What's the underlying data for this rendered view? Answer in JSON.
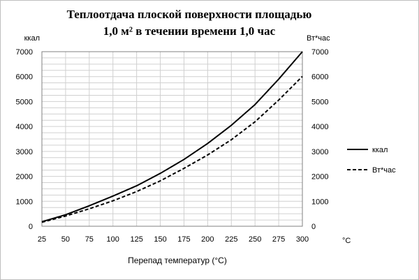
{
  "chart_data": {
    "type": "line",
    "title_line1": "Теплоотдача  плоской  поверхности площадью",
    "title_line2": "1,0 м² в течении  времени 1,0 час",
    "xlabel": "Перепад  температур (°С)",
    "x_unit": "°С",
    "ylabel_left": "ккал",
    "ylabel_right": "Вт*час",
    "x": [
      25,
      50,
      75,
      100,
      125,
      150,
      175,
      200,
      225,
      250,
      275,
      300
    ],
    "xlim": [
      25,
      300
    ],
    "ylim": [
      0,
      7000
    ],
    "y_ticks": [
      0,
      1000,
      2000,
      3000,
      4000,
      5000,
      6000,
      7000
    ],
    "grid": true,
    "legend_position": "right",
    "series": [
      {
        "name": "ккал",
        "style": "solid",
        "color": "#000000",
        "values": [
          180,
          460,
          820,
          1210,
          1620,
          2120,
          2680,
          3320,
          4050,
          4880,
          5900,
          7000
        ]
      },
      {
        "name": "Вт*час",
        "style": "dashed",
        "color": "#000000",
        "values": [
          160,
          410,
          700,
          1020,
          1390,
          1820,
          2320,
          2860,
          3470,
          4190,
          5060,
          6010
        ]
      }
    ]
  }
}
